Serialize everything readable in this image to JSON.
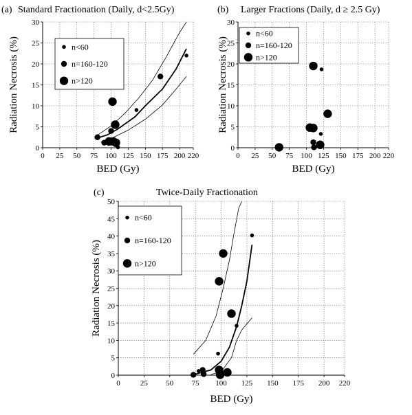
{
  "figure": {
    "background": "#ffffff",
    "grid_color": "#555555"
  },
  "chart_data": [
    {
      "panel_label": "(a)",
      "type": "scatter",
      "title": "Standard Fractionation (Daily, d<2.5Gy)",
      "xlabel": "BED (Gy)",
      "ylabel": "Radiation Necrosis (%)",
      "xlim": [
        0,
        220
      ],
      "ylim": [
        0,
        30
      ],
      "xticks": [
        0,
        25,
        50,
        75,
        100,
        125,
        150,
        175,
        200,
        220
      ],
      "yticks": [
        0,
        5,
        10,
        15,
        20,
        25,
        30
      ],
      "grid": true,
      "legend": {
        "placement": "top-left",
        "entries": [
          {
            "label": "n<60",
            "size": "small"
          },
          {
            "label": "n=160-120",
            "size": "medium"
          },
          {
            "label": "n>120",
            "size": "large"
          }
        ]
      },
      "points": [
        {
          "x": 80,
          "y": 2.5,
          "size": "medium"
        },
        {
          "x": 90,
          "y": 1.2,
          "size": "medium"
        },
        {
          "x": 97,
          "y": 1.5,
          "size": "large"
        },
        {
          "x": 100,
          "y": 4.0,
          "size": "medium"
        },
        {
          "x": 102,
          "y": 11.0,
          "size": "large"
        },
        {
          "x": 103,
          "y": 1.5,
          "size": "large"
        },
        {
          "x": 106,
          "y": 5.5,
          "size": "large"
        },
        {
          "x": 107,
          "y": 1.2,
          "size": "large"
        },
        {
          "x": 110,
          "y": 0.1,
          "size": "small"
        },
        {
          "x": 137,
          "y": 9.0,
          "size": "small"
        },
        {
          "x": 172,
          "y": 17.0,
          "size": "medium"
        },
        {
          "x": 210,
          "y": 22.0,
          "size": "small"
        }
      ],
      "fit_curves": [
        {
          "style": "thick",
          "points": [
            [
              78,
              2.2
            ],
            [
              95,
              3.1
            ],
            [
              110,
              4.5
            ],
            [
              135,
              7.4
            ],
            [
              150,
              10.0
            ],
            [
              175,
              14.0
            ],
            [
              195,
              18.8
            ],
            [
              210,
              23.6
            ]
          ]
        },
        {
          "style": "thin",
          "points": [
            [
              80,
              3.0
            ],
            [
              100,
              5.2
            ],
            [
              120,
              8.2
            ],
            [
              140,
              11.8
            ],
            [
              160,
              16.0
            ],
            [
              180,
              21.5
            ],
            [
              200,
              27.5
            ],
            [
              210,
              30.0
            ]
          ]
        },
        {
          "style": "thin",
          "points": [
            [
              85,
              1.4
            ],
            [
              100,
              2.2
            ],
            [
              125,
              4.2
            ],
            [
              150,
              6.8
            ],
            [
              175,
              10.2
            ],
            [
              195,
              14.0
            ],
            [
              210,
              17.0
            ]
          ]
        }
      ]
    },
    {
      "panel_label": "(b)",
      "type": "scatter",
      "title": "Larger Fractions (Daily, d ≥ 2.5 Gy)",
      "xlabel": "BED (Gy)",
      "ylabel": "Radiation Necrosis (%)",
      "xlim": [
        0,
        220
      ],
      "ylim": [
        0,
        30
      ],
      "xticks": [
        0,
        25,
        50,
        75,
        100,
        125,
        150,
        175,
        200,
        220
      ],
      "yticks": [
        0,
        5,
        10,
        15,
        20,
        25,
        30
      ],
      "grid": true,
      "legend": {
        "placement": "top-left",
        "entries": [
          {
            "label": "n<60",
            "size": "small"
          },
          {
            "label": "n=160-120",
            "size": "medium"
          },
          {
            "label": "n>120",
            "size": "large"
          }
        ]
      },
      "points": [
        {
          "x": 60,
          "y": 0.1,
          "size": "large"
        },
        {
          "x": 105,
          "y": 4.8,
          "size": "large"
        },
        {
          "x": 110,
          "y": 19.5,
          "size": "large"
        },
        {
          "x": 110,
          "y": 4.7,
          "size": "large"
        },
        {
          "x": 110,
          "y": 1.3,
          "size": "medium"
        },
        {
          "x": 111,
          "y": 0.1,
          "size": "medium"
        },
        {
          "x": 120,
          "y": 0.7,
          "size": "large"
        },
        {
          "x": 121,
          "y": 3.3,
          "size": "small"
        },
        {
          "x": 122,
          "y": 18.7,
          "size": "small"
        },
        {
          "x": 131,
          "y": 8.1,
          "size": "large"
        }
      ],
      "fit_curves": []
    },
    {
      "panel_label": "(c)",
      "type": "scatter",
      "title": "Twice-Daily Fractionation",
      "xlabel": "BED (Gy)",
      "ylabel": "Radiation Necrosis (%)",
      "xlim": [
        0,
        220
      ],
      "ylim": [
        0,
        50
      ],
      "xticks": [
        0,
        25,
        50,
        75,
        100,
        125,
        150,
        175,
        200,
        220
      ],
      "yticks": [
        0,
        5,
        10,
        15,
        20,
        25,
        30,
        35,
        40,
        45,
        50
      ],
      "grid": true,
      "legend": {
        "placement": "top-left",
        "entries": [
          {
            "label": "n<60",
            "size": "small"
          },
          {
            "label": "n=160-120",
            "size": "medium"
          },
          {
            "label": "n>120",
            "size": "large"
          }
        ]
      },
      "points": [
        {
          "x": 73,
          "y": 0.1,
          "size": "medium"
        },
        {
          "x": 78,
          "y": 1.2,
          "size": "small"
        },
        {
          "x": 82,
          "y": 1.5,
          "size": "medium"
        },
        {
          "x": 83,
          "y": 0.3,
          "size": "medium"
        },
        {
          "x": 97,
          "y": 6.2,
          "size": "small"
        },
        {
          "x": 98,
          "y": 27.0,
          "size": "large"
        },
        {
          "x": 98,
          "y": 1.5,
          "size": "large"
        },
        {
          "x": 99,
          "y": 0.1,
          "size": "large"
        },
        {
          "x": 102,
          "y": 35.0,
          "size": "large"
        },
        {
          "x": 106,
          "y": 0.8,
          "size": "large"
        },
        {
          "x": 110,
          "y": 17.7,
          "size": "large"
        },
        {
          "x": 115,
          "y": 14.2,
          "size": "small"
        },
        {
          "x": 130,
          "y": 40.2,
          "size": "small"
        }
      ],
      "fit_curves": [
        {
          "style": "thick",
          "points": [
            [
              75,
              0.3
            ],
            [
              90,
              1.5
            ],
            [
              100,
              4.0
            ],
            [
              108,
              8.0
            ],
            [
              115,
              14.0
            ],
            [
              120,
              20.0
            ],
            [
              125,
              27.0
            ],
            [
              130,
              37.5
            ]
          ]
        },
        {
          "style": "thin",
          "points": [
            [
              73,
              6.0
            ],
            [
              85,
              10.0
            ],
            [
              95,
              17.0
            ],
            [
              102,
              25.0
            ],
            [
              108,
              33.0
            ],
            [
              112,
              40.0
            ],
            [
              117,
              48.0
            ],
            [
              120,
              50.0
            ]
          ]
        },
        {
          "style": "thin",
          "points": [
            [
              90,
              0.2
            ],
            [
              100,
              1.0
            ],
            [
              110,
              5.0
            ],
            [
              115,
              10.0
            ],
            [
              120,
              13.0
            ],
            [
              130,
              16.5
            ]
          ]
        }
      ]
    }
  ]
}
